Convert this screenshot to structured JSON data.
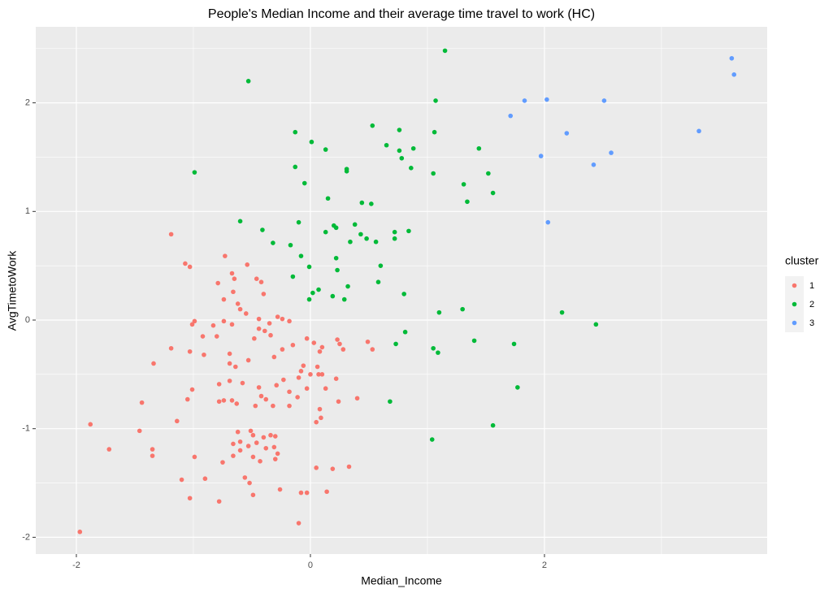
{
  "chart_data": {
    "type": "scatter",
    "title": "People's Median Income and their average time travel to work (HC)",
    "x_label": "Median_Income",
    "y_label": "AvgTimetoWork",
    "legend_title": "cluster",
    "legend_position": "right",
    "grid": true,
    "xlim": [
      -2.347,
      3.903
    ],
    "ylim": [
      -2.154,
      2.7
    ],
    "xticks": [
      -2,
      0,
      2
    ],
    "yticks": [
      -2,
      -1,
      0,
      1,
      2
    ],
    "series": [
      {
        "name": "1",
        "color": "#F8766D",
        "x": [
          -1.19,
          -0.73,
          -0.54,
          -1.07,
          -1.03,
          -0.67,
          -0.65,
          -0.79,
          -0.46,
          -0.42,
          -0.4,
          -0.66,
          -0.74,
          -0.62,
          -0.6,
          -0.55,
          -0.44,
          -0.99,
          -0.83,
          -0.74,
          -0.67,
          -1.01,
          -0.28,
          -0.24,
          -0.18,
          -0.35,
          -0.44,
          -0.39,
          -0.34,
          -0.48,
          -0.8,
          -0.92,
          -0.03,
          0.03,
          0.1,
          0.08,
          0.23,
          0.25,
          0.28,
          0.49,
          0.53,
          -0.15,
          -0.24,
          -0.31,
          -0.53,
          -0.69,
          -0.69,
          -0.64,
          -0.91,
          -1.03,
          -1.19,
          -1.34,
          -0.06,
          0.06,
          -0.08,
          -0.1,
          0.0,
          0.07,
          0.1,
          0.22,
          -0.23,
          -0.29,
          -0.18,
          -0.11,
          -0.03,
          0.13,
          -0.44,
          -0.42,
          -0.47,
          -0.32,
          -0.38,
          -0.58,
          -0.69,
          -0.78,
          -0.74,
          -0.78,
          -0.67,
          -0.63,
          -1.01,
          -1.05,
          -1.44,
          -0.18,
          0.4,
          0.24,
          0.08,
          0.09,
          0.05,
          -1.14,
          -1.88,
          -1.46,
          -0.62,
          -0.51,
          -0.49,
          -0.4,
          -0.34,
          -0.3,
          -0.6,
          -0.53,
          -0.46,
          -0.38,
          -0.31,
          -0.28,
          -0.3,
          -0.66,
          -0.6,
          -1.72,
          -1.35,
          -1.35,
          -0.99,
          -0.66,
          -0.49,
          -0.43,
          -0.75,
          0.05,
          0.19,
          0.33,
          -1.1,
          -0.9,
          -0.56,
          -0.52,
          -0.49,
          -0.26,
          -0.08,
          -0.03,
          0.14,
          -1.03,
          -0.78,
          -0.1,
          -1.97
        ],
        "values": [
          0.79,
          0.59,
          0.51,
          0.52,
          0.49,
          0.43,
          0.38,
          0.34,
          0.38,
          0.35,
          0.24,
          0.26,
          0.19,
          0.15,
          0.1,
          0.06,
          0.01,
          -0.01,
          -0.05,
          -0.01,
          -0.04,
          -0.04,
          0.03,
          0.01,
          -0.01,
          -0.03,
          -0.08,
          -0.1,
          -0.14,
          -0.17,
          -0.15,
          -0.15,
          -0.17,
          -0.21,
          -0.25,
          -0.29,
          -0.18,
          -0.22,
          -0.27,
          -0.2,
          -0.27,
          -0.23,
          -0.27,
          -0.34,
          -0.37,
          -0.31,
          -0.4,
          -0.43,
          -0.32,
          -0.29,
          -0.26,
          -0.4,
          -0.42,
          -0.43,
          -0.47,
          -0.53,
          -0.5,
          -0.5,
          -0.5,
          -0.54,
          -0.55,
          -0.6,
          -0.66,
          -0.71,
          -0.63,
          -0.63,
          -0.62,
          -0.7,
          -0.79,
          -0.79,
          -0.73,
          -0.58,
          -0.56,
          -0.59,
          -0.74,
          -0.75,
          -0.74,
          -0.77,
          -0.64,
          -0.73,
          -0.76,
          -0.79,
          -0.72,
          -0.75,
          -0.82,
          -0.9,
          -0.94,
          -0.93,
          -0.96,
          -1.02,
          -1.03,
          -1.02,
          -1.06,
          -1.08,
          -1.06,
          -1.07,
          -1.12,
          -1.16,
          -1.13,
          -1.18,
          -1.17,
          -1.23,
          -1.28,
          -1.14,
          -1.2,
          -1.19,
          -1.19,
          -1.25,
          -1.26,
          -1.25,
          -1.26,
          -1.3,
          -1.31,
          -1.36,
          -1.37,
          -1.35,
          -1.47,
          -1.46,
          -1.45,
          -1.5,
          -1.61,
          -1.56,
          -1.59,
          -1.59,
          -1.58,
          -1.64,
          -1.67,
          -1.87,
          -1.95
        ]
      },
      {
        "name": "2",
        "color": "#00BA38",
        "x": [
          1.15,
          -0.53,
          1.07,
          0.53,
          0.76,
          1.06,
          -0.13,
          0.01,
          0.65,
          0.13,
          0.76,
          0.88,
          1.44,
          0.78,
          -0.13,
          0.31,
          0.31,
          0.86,
          1.05,
          1.52,
          -0.99,
          1.31,
          -0.05,
          1.56,
          0.15,
          1.34,
          0.44,
          0.52,
          -0.6,
          -0.1,
          0.2,
          0.22,
          0.38,
          0.13,
          0.72,
          0.84,
          -0.41,
          0.43,
          0.72,
          0.48,
          0.56,
          0.34,
          -0.32,
          -0.17,
          -0.08,
          0.22,
          0.6,
          -0.01,
          -0.15,
          0.23,
          0.32,
          0.58,
          0.07,
          0.02,
          0.19,
          0.8,
          0.29,
          -0.01,
          1.3,
          1.1,
          2.15,
          2.44,
          0.81,
          1.4,
          0.73,
          1.74,
          1.05,
          1.09,
          1.77,
          0.68,
          1.56,
          1.04
        ],
        "values": [
          2.48,
          2.2,
          2.02,
          1.79,
          1.75,
          1.73,
          1.73,
          1.64,
          1.61,
          1.57,
          1.56,
          1.58,
          1.58,
          1.49,
          1.41,
          1.39,
          1.37,
          1.4,
          1.35,
          1.35,
          1.36,
          1.25,
          1.26,
          1.17,
          1.12,
          1.09,
          1.08,
          1.07,
          0.91,
          0.9,
          0.87,
          0.85,
          0.88,
          0.81,
          0.81,
          0.82,
          0.83,
          0.79,
          0.75,
          0.75,
          0.72,
          0.72,
          0.71,
          0.69,
          0.59,
          0.57,
          0.5,
          0.49,
          0.4,
          0.46,
          0.31,
          0.35,
          0.28,
          0.25,
          0.22,
          0.24,
          0.19,
          0.19,
          0.1,
          0.07,
          0.07,
          -0.04,
          -0.11,
          -0.19,
          -0.22,
          -0.22,
          -0.26,
          -0.3,
          -0.62,
          -0.75,
          -0.97,
          -1.1
        ]
      },
      {
        "name": "3",
        "color": "#619CFF",
        "x": [
          3.6,
          3.62,
          3.32,
          2.51,
          2.02,
          1.83,
          1.71,
          2.19,
          2.57,
          1.97,
          2.42,
          2.03
        ],
        "values": [
          2.41,
          2.26,
          1.74,
          2.02,
          2.03,
          2.02,
          1.88,
          1.72,
          1.54,
          1.51,
          1.43,
          0.9
        ]
      }
    ]
  }
}
